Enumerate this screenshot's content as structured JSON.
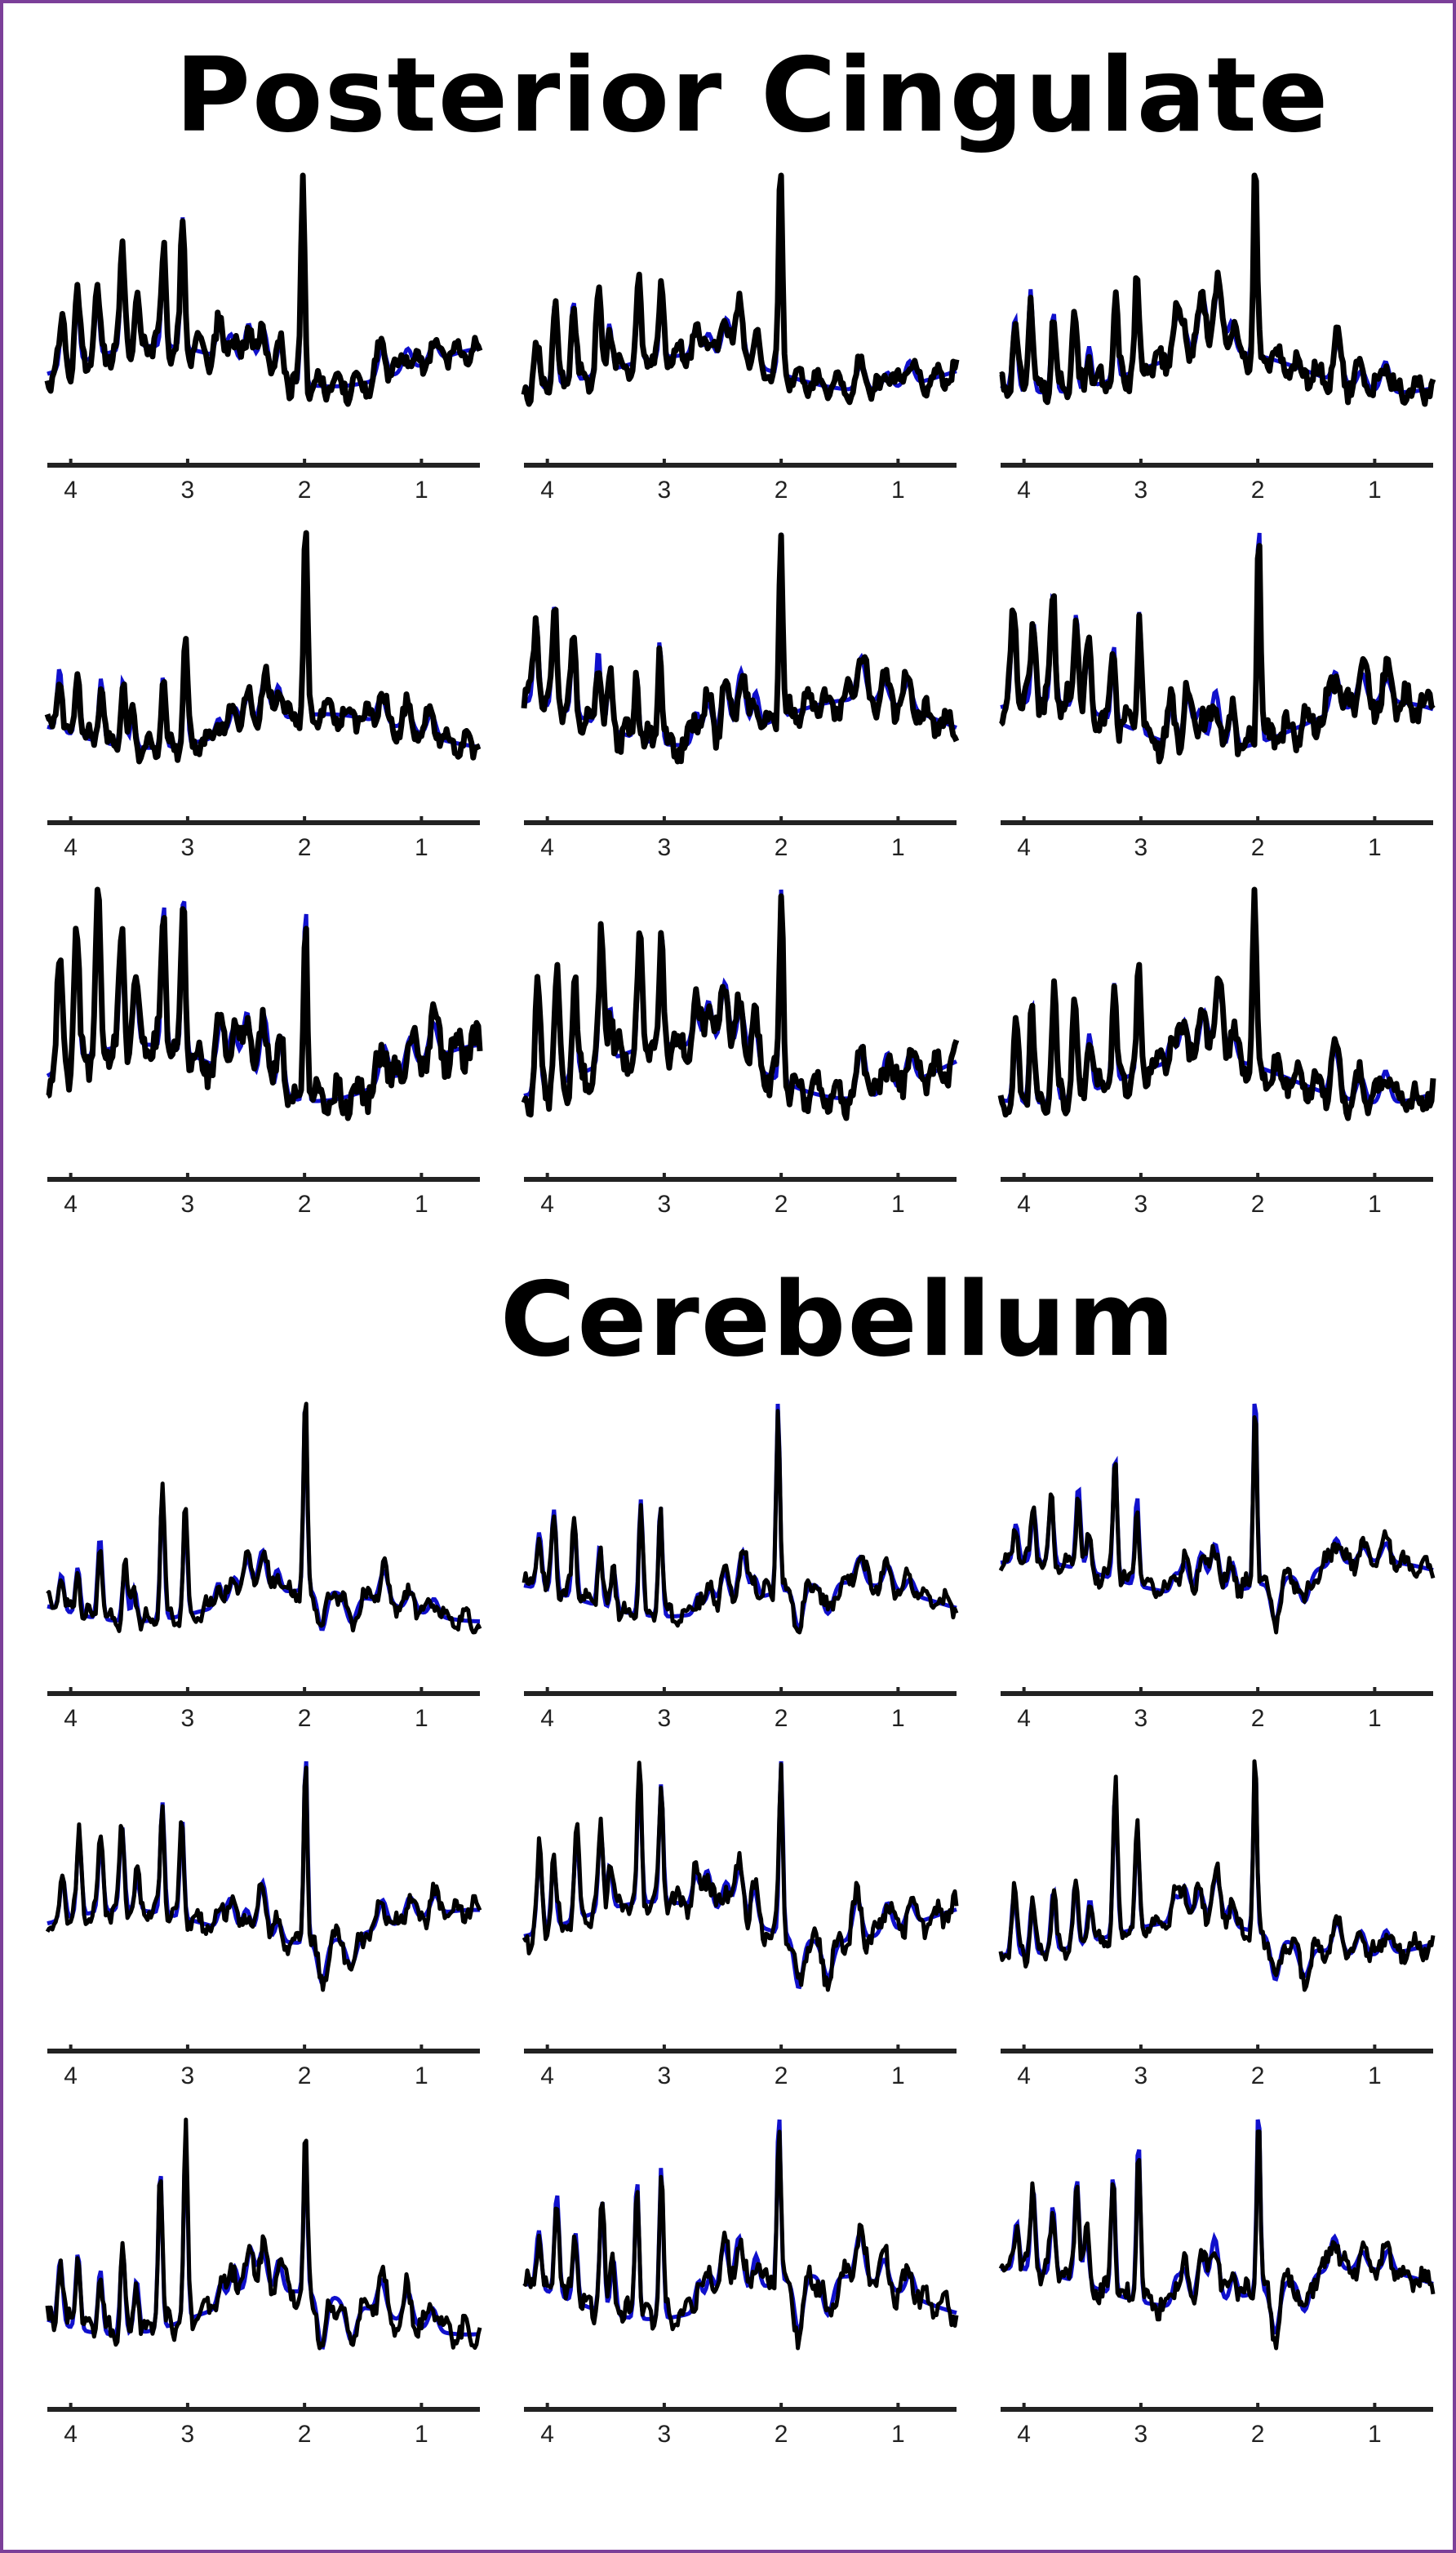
{
  "colors": {
    "frame": "#7b3f99",
    "fit": "#1010cc",
    "data": "#000000",
    "axis": "#222222"
  },
  "sections": [
    {
      "title": "Posterior Cingulate"
    },
    {
      "title": "Cerebellum"
    }
  ],
  "chart_data": {
    "type": "line",
    "xlabel": "",
    "ylabel": "",
    "xlim": [
      4.2,
      0.5
    ],
    "xticks": [
      4,
      3,
      2,
      1
    ],
    "x_reversed": true,
    "grid": false,
    "legend": "none",
    "series_styles": [
      {
        "role": "fit",
        "color": "#1010cc"
      },
      {
        "role": "data",
        "color": "#000000"
      }
    ],
    "panels": [
      {
        "section": 0,
        "row": 0,
        "col": 0
      },
      {
        "section": 0,
        "row": 0,
        "col": 1
      },
      {
        "section": 0,
        "row": 0,
        "col": 2
      },
      {
        "section": 0,
        "row": 1,
        "col": 0
      },
      {
        "section": 0,
        "row": 1,
        "col": 1
      },
      {
        "section": 0,
        "row": 1,
        "col": 2
      },
      {
        "section": 0,
        "row": 2,
        "col": 0
      },
      {
        "section": 0,
        "row": 2,
        "col": 1
      },
      {
        "section": 0,
        "row": 2,
        "col": 2
      },
      {
        "section": 1,
        "row": 0,
        "col": 0
      },
      {
        "section": 1,
        "row": 0,
        "col": 1
      },
      {
        "section": 1,
        "row": 0,
        "col": 2
      },
      {
        "section": 1,
        "row": 1,
        "col": 0
      },
      {
        "section": 1,
        "row": 1,
        "col": 1
      },
      {
        "section": 1,
        "row": 1,
        "col": 2
      },
      {
        "section": 1,
        "row": 2,
        "col": 0
      },
      {
        "section": 1,
        "row": 2,
        "col": 1
      },
      {
        "section": 1,
        "row": 2,
        "col": 2
      }
    ]
  }
}
